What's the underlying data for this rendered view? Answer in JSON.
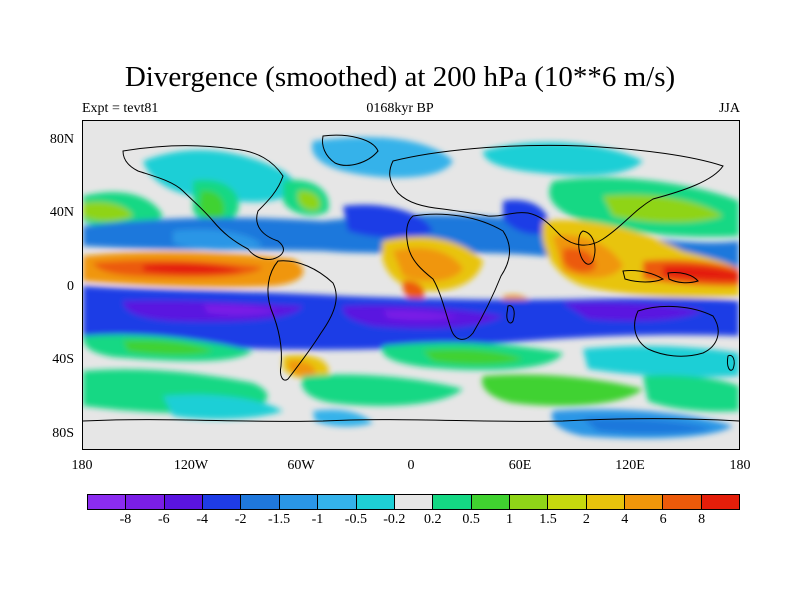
{
  "title": "Divergence (smoothed) at 200 hPa (10**6 m/s)",
  "left_label": "Expt = tevt81",
  "center_label": "0168kyr BP",
  "right_label": "JJA",
  "y_ticks": [
    "80N",
    "40N",
    "0",
    "40S",
    "80S"
  ],
  "x_ticks": [
    "180",
    "120W",
    "60W",
    "0",
    "60E",
    "120E",
    "180"
  ],
  "colorbar": {
    "colors": [
      "#8b2cf0",
      "#7a1ee6",
      "#5a14e0",
      "#1e3ce6",
      "#1f78dc",
      "#2a96e6",
      "#34b2ea",
      "#1ecfd6",
      "#e6e6e6",
      "#14d884",
      "#40d230",
      "#8fd418",
      "#c6d80e",
      "#e8c40c",
      "#f0960a",
      "#ec5a0a",
      "#e41e0a"
    ],
    "labels": [
      "-8",
      "-6",
      "-4",
      "-2",
      "-1.5",
      "-1",
      "-0.5",
      "-0.2",
      "0.2",
      "0.5",
      "1",
      "1.5",
      "2",
      "4",
      "6",
      "8"
    ]
  }
}
